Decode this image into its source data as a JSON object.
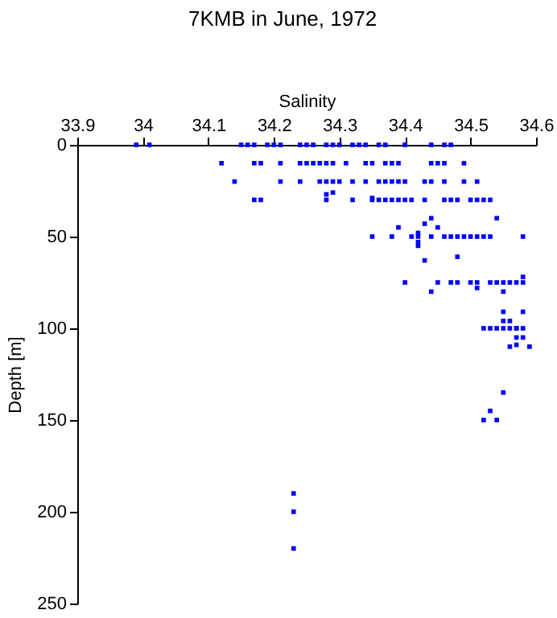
{
  "chart_data": {
    "type": "scatter",
    "title": "7KMB in June, 1972",
    "xlabel": "Salinity",
    "ylabel": "Depth [m]",
    "xlim": [
      33.9,
      34.6
    ],
    "xticks": [
      33.9,
      34,
      34.1,
      34.2,
      34.3,
      34.4,
      34.5,
      34.6
    ],
    "ylim": [
      250,
      0
    ],
    "yticks": [
      0,
      50,
      100,
      150,
      200,
      250
    ],
    "grid": false,
    "marker": "square",
    "series": [
      {
        "color": "#0000ff",
        "x": [
          33.99,
          34.01,
          34.15,
          34.16,
          34.17,
          34.19,
          34.2,
          34.21,
          34.24,
          34.25,
          34.26,
          34.28,
          34.29,
          34.3,
          34.32,
          34.33,
          34.34,
          34.36,
          34.37,
          34.4,
          34.44,
          34.46,
          34.47,
          34.12,
          34.17,
          34.18,
          34.21,
          34.24,
          34.25,
          34.26,
          34.27,
          34.28,
          34.29,
          34.31,
          34.34,
          34.35,
          34.37,
          34.38,
          34.39,
          34.44,
          34.45,
          34.46,
          34.49,
          34.14,
          34.21,
          34.24,
          34.27,
          34.28,
          34.29,
          34.3,
          34.32,
          34.34,
          34.36,
          34.37,
          34.38,
          34.39,
          34.4,
          34.43,
          34.44,
          34.46,
          34.49,
          34.51,
          34.29,
          34.28,
          34.17,
          34.18,
          34.28,
          34.32,
          34.35,
          34.36,
          34.37,
          34.38,
          34.39,
          34.4,
          34.41,
          34.43,
          34.46,
          34.47,
          34.48,
          34.5,
          34.51,
          34.52,
          34.53,
          34.35,
          34.44,
          34.54,
          34.43,
          34.39,
          34.45,
          34.42,
          34.35,
          34.38,
          34.41,
          34.42,
          34.44,
          34.46,
          34.47,
          34.48,
          34.49,
          34.5,
          34.51,
          34.52,
          34.53,
          34.58,
          34.42,
          34.42,
          34.48,
          34.43,
          34.4,
          34.45,
          34.47,
          34.48,
          34.5,
          34.51,
          34.53,
          34.54,
          34.55,
          34.56,
          34.57,
          34.58,
          34.58,
          34.51,
          34.44,
          34.55,
          34.55,
          34.58,
          34.55,
          34.56,
          34.52,
          34.53,
          34.54,
          34.55,
          34.56,
          34.57,
          34.57,
          34.58,
          34.57,
          34.58,
          34.57,
          34.56,
          34.59,
          34.55,
          34.53,
          34.52,
          34.54,
          34.23,
          34.23,
          34.23
        ],
        "values": [
          0,
          0,
          0,
          0,
          0,
          0,
          0,
          0,
          0,
          0,
          0,
          0,
          0,
          0,
          0,
          0,
          0,
          0,
          0,
          0,
          0,
          0,
          0,
          10,
          10,
          10,
          10,
          10,
          10,
          10,
          10,
          10,
          10,
          10,
          10,
          10,
          10,
          10,
          10,
          10,
          10,
          10,
          10,
          20,
          20,
          20,
          20,
          20,
          20,
          20,
          20,
          20,
          20,
          20,
          20,
          20,
          20,
          20,
          20,
          20,
          20,
          20,
          26,
          27,
          30,
          30,
          30,
          30,
          30,
          30,
          30,
          30,
          30,
          30,
          30,
          30,
          30,
          30,
          30,
          30,
          30,
          30,
          30,
          29,
          40,
          40,
          43,
          45,
          45,
          48,
          50,
          50,
          50,
          50,
          50,
          50,
          50,
          50,
          50,
          50,
          50,
          50,
          50,
          50,
          53,
          55,
          61,
          63,
          75,
          75,
          75,
          75,
          75,
          75,
          75,
          75,
          75,
          75,
          75,
          75,
          72,
          78,
          80,
          80,
          91,
          91,
          96,
          96,
          100,
          100,
          100,
          100,
          100,
          100,
          100,
          100,
          105,
          105,
          109,
          110,
          110,
          135,
          145,
          150,
          150,
          190,
          200,
          220
        ]
      }
    ]
  }
}
